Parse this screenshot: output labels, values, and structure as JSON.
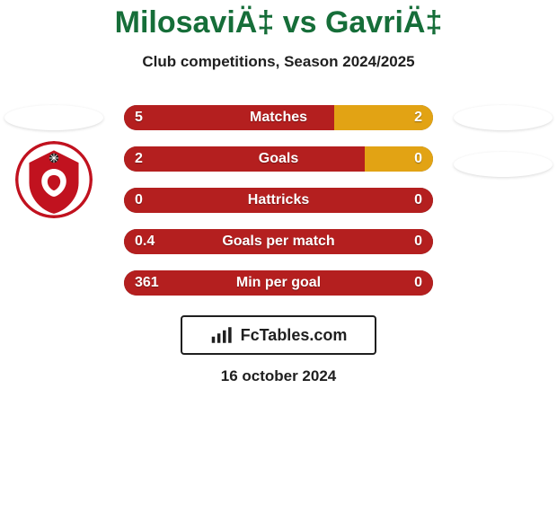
{
  "colors": {
    "background": "#ffffff",
    "title": "#166e39",
    "subtitle": "#1f1f1f",
    "stat_label": "#ffffff",
    "stat_value": "#ffffff",
    "row_bg": "#4d4d4d",
    "bar_left": "#b41f1f",
    "bar_right": "#e2a314",
    "bar_highlight_right": "#e2a314",
    "placeholder_oval": "#ffffff",
    "crest_primary": "#c1121f",
    "crest_secondary": "#ffffff",
    "crest_accent": "#1b1b1b",
    "footer_bg": "#ffffff",
    "footer_border": "#1f1f1f",
    "footer_text": "#1f1f1f",
    "date_text": "#1f1f1f",
    "footer_icon": "#1f1f1f"
  },
  "layout": {
    "stats_width": 344,
    "stats_row_height": 28,
    "stats_row_gap": 18,
    "stats_row_radius": 14,
    "title_fontsize": 34,
    "subtitle_fontsize": 17,
    "stat_label_fontsize": 16,
    "date_fontsize": 17
  },
  "header": {
    "title": "MilosaviÄ‡ vs GavriÄ‡",
    "subtitle": "Club competitions, Season 2024/2025"
  },
  "left_club": {
    "name": "FK Voždovac",
    "has_crest": true
  },
  "right_club": {
    "name": "Unknown",
    "has_crest": false
  },
  "stats": [
    {
      "label": "Matches",
      "left_value": "5",
      "right_value": "2",
      "left_pct": 68,
      "right_pct": 32
    },
    {
      "label": "Goals",
      "left_value": "2",
      "right_value": "0",
      "left_pct": 78,
      "right_pct": 22
    },
    {
      "label": "Hattricks",
      "left_value": "0",
      "right_value": "0",
      "left_pct": 100,
      "right_pct": 0
    },
    {
      "label": "Goals per match",
      "left_value": "0.4",
      "right_value": "0",
      "left_pct": 100,
      "right_pct": 0
    },
    {
      "label": "Min per goal",
      "left_value": "361",
      "right_value": "0",
      "left_pct": 100,
      "right_pct": 0
    }
  ],
  "footer": {
    "logo_text": "FcTables.com",
    "date": "16 october 2024"
  }
}
